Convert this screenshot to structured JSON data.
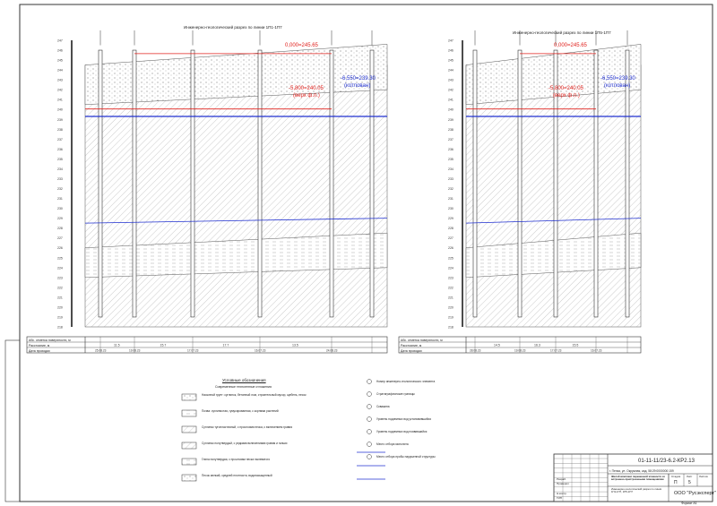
{
  "sections": [
    {
      "title": "Инженерно-геологический разрез по линии 1П1-1П7",
      "zero_level": "0,000=245.65",
      "foundation_level": "-5,800=240.05",
      "foundation_note": "(верх ф.п.)",
      "pit_level": "-6,550=239.30",
      "pit_note": "(котлован)",
      "elevation_top": 247,
      "elevation_bottom": 218,
      "table_rows": [
        "Абс. отметка поверхности, м",
        "Расстояние, м",
        "Дата проходки"
      ],
      "distances": [
        "11.5",
        "15.7",
        "17.7",
        "13.5"
      ],
      "dates": [
        "25.08.23",
        "19.08.23",
        "17.07.23",
        "16.07.23",
        "24.08.23"
      ]
    },
    {
      "title": "Инженерно-геологический разрез по линии 1П5-1П7",
      "zero_level": "0,000=245.65",
      "foundation_level": "-5,800=240.05",
      "foundation_note": "(верх ф.п.)",
      "pit_level": "-6,550=239.30",
      "pit_note": "(котлован)",
      "elevation_top": 247,
      "elevation_bottom": 218,
      "table_rows": [
        "Абс. отметка поверхности, м",
        "Расстояние, м",
        "Дата проходки"
      ],
      "distances": [
        "14.5",
        "16.3",
        "15.5"
      ],
      "dates": [
        "28.08.23",
        "19.08.23",
        "17.07.23",
        "16.07.23"
      ]
    }
  ],
  "legend": {
    "title": "Условные обозначения",
    "subtitle": "Современные техногенные отложения",
    "items": [
      "Насыпной грунт: суглинок, бетонный лом, строительный мусор, щебень, песок",
      "Почва: суглинистая, гумусированная, с корнями растений",
      "Суглинок тугопластичный, с прослоями песка, с включением гравия",
      "Суглинок полутвердый, с редкими включениями гравия и гальки",
      "Глина полутвердая, с прослоями песка пылеватого",
      "Песок мелкий, средней плотности, водонасыщенный"
    ],
    "right_items": [
      "Номер инженерно-геологического элемента",
      "Стратиграфические границы",
      "Скважина",
      "Уровень подземных вод установившийся",
      "Уровень подземных вод появившийся",
      "Место отбора монолита",
      "Место отбора пробы нарушенной структуры"
    ]
  },
  "title_block": {
    "code": "01-11-11/23-6.2-КР2.13",
    "address": "г. Пенза, ул. Окружная, кад. 58:29:0000000:159",
    "object": "Жилой комплекс переменной этажности со встроенно-пристроенными помещениями",
    "sheet_title": "Инженерно-геологический разрез по линии 1П1-1П7, 1П5-1П7",
    "stage": "П",
    "sheet": "5",
    "company": "ООО \"Русэксперт\"",
    "format": "Формат А1",
    "headers": [
      "Стадия",
      "Лист",
      "Листов"
    ],
    "roles": [
      "Разраб.",
      "Проверил",
      "Н.контр.",
      "ГИП"
    ]
  },
  "colors": {
    "red": "#e0201c",
    "blue": "#2030d0",
    "line": "#333333"
  }
}
